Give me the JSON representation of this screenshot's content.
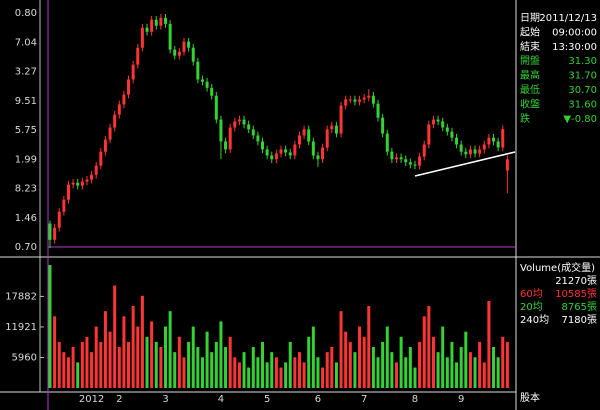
{
  "chart_data": {
    "type": "candlestick",
    "categories": [
      null,
      null,
      null,
      null,
      null,
      null,
      null,
      null,
      null,
      "2012",
      null,
      null,
      null,
      null,
      null,
      "2",
      null,
      null,
      null,
      null,
      null,
      null,
      null,
      null,
      null,
      "3",
      null,
      null,
      null,
      null,
      null,
      null,
      null,
      null,
      null,
      null,
      null,
      "4",
      null,
      null,
      null,
      null,
      null,
      null,
      null,
      null,
      null,
      "5",
      null,
      null,
      null,
      null,
      null,
      null,
      null,
      null,
      null,
      null,
      "6",
      null,
      null,
      null,
      null,
      null,
      null,
      null,
      null,
      null,
      "7",
      null,
      null,
      null,
      null,
      null,
      null,
      null,
      null,
      null,
      null,
      "8",
      null,
      null,
      null,
      null,
      null,
      null,
      null,
      null,
      null,
      "9",
      null,
      null,
      null,
      null,
      null,
      null,
      null,
      null,
      null,
      null
    ],
    "open": [
      29.9,
      29.47,
      29.79,
      30.21,
      30.53,
      30.93,
      30.98,
      30.9,
      31.01,
      31.06,
      31.19,
      31.43,
      31.8,
      32.12,
      32.44,
      32.78,
      33.05,
      33.31,
      33.71,
      34.1,
      34.55,
      35.08,
      34.97,
      35.29,
      35.13,
      35.34,
      35.18,
      34.5,
      34.34,
      34.44,
      34.71,
      34.55,
      34.18,
      33.71,
      33.65,
      33.49,
      33.28,
      32.65,
      32.07,
      31.86,
      32.44,
      32.6,
      32.65,
      32.52,
      32.39,
      32.23,
      32.07,
      31.86,
      31.7,
      31.6,
      31.75,
      31.86,
      31.78,
      31.7,
      31.99,
      32.23,
      32.39,
      32.07,
      31.7,
      31.6,
      31.91,
      32.39,
      32.49,
      32.28,
      33.02,
      33.18,
      33.18,
      33.12,
      33.18,
      33.23,
      33.28,
      33.07,
      32.7,
      32.28,
      31.8,
      31.6,
      31.65,
      31.6,
      31.52,
      31.46,
      31.43,
      31.67,
      31.99,
      32.52,
      32.65,
      32.6,
      32.44,
      32.33,
      32.17,
      31.99,
      31.8,
      31.73,
      31.86,
      31.75,
      31.86,
      31.99,
      32.17,
      32.07,
      31.91,
      31.3
    ],
    "high": [
      29.98,
      29.89,
      30.31,
      30.63,
      31.03,
      31.08,
      31.08,
      31.11,
      31.16,
      31.29,
      31.53,
      31.9,
      32.22,
      32.54,
      32.88,
      33.15,
      33.41,
      33.81,
      34.2,
      34.65,
      35.18,
      35.18,
      35.39,
      35.39,
      35.44,
      35.44,
      35.28,
      34.6,
      34.54,
      34.81,
      34.81,
      34.65,
      34.28,
      33.81,
      33.75,
      33.59,
      33.38,
      32.75,
      32.17,
      32.54,
      32.7,
      32.75,
      32.75,
      32.62,
      32.49,
      32.33,
      32.17,
      31.96,
      31.8,
      31.85,
      31.96,
      31.96,
      31.88,
      32.09,
      32.33,
      32.49,
      32.49,
      32.17,
      31.8,
      32.01,
      32.49,
      32.59,
      32.59,
      33.12,
      33.28,
      33.28,
      33.28,
      33.28,
      33.33,
      33.45,
      33.38,
      33.17,
      32.8,
      32.38,
      31.9,
      31.75,
      31.75,
      31.7,
      31.62,
      31.56,
      31.77,
      32.09,
      32.62,
      32.75,
      32.75,
      32.7,
      32.54,
      32.43,
      32.27,
      32.09,
      31.9,
      31.96,
      31.96,
      31.96,
      32.09,
      32.27,
      32.27,
      32.17,
      32.5,
      31.7
    ],
    "low": [
      29.25,
      29.37,
      29.69,
      30.11,
      30.43,
      30.83,
      30.8,
      30.8,
      30.91,
      30.96,
      31.09,
      31.33,
      31.7,
      32.02,
      32.34,
      32.68,
      32.95,
      33.21,
      33.61,
      34.0,
      34.45,
      34.87,
      34.87,
      35.03,
      35.03,
      35.08,
      34.4,
      34.24,
      34.24,
      34.34,
      34.45,
      34.08,
      33.61,
      33.55,
      33.39,
      33.18,
      32.55,
      31.6,
      31.76,
      31.76,
      32.34,
      32.5,
      32.42,
      32.29,
      32.13,
      31.97,
      31.76,
      31.6,
      31.5,
      31.5,
      31.65,
      31.68,
      31.6,
      31.6,
      31.89,
      32.13,
      31.97,
      31.6,
      31.4,
      31.5,
      31.81,
      32.29,
      32.18,
      32.18,
      32.92,
      33.08,
      33.02,
      33.02,
      33.08,
      33.13,
      32.97,
      32.6,
      32.18,
      31.7,
      31.5,
      31.5,
      31.5,
      31.42,
      31.36,
      31.33,
      31.33,
      31.57,
      31.89,
      32.42,
      32.5,
      32.34,
      32.23,
      32.07,
      31.89,
      31.7,
      31.63,
      31.63,
      31.65,
      31.65,
      31.76,
      31.89,
      31.97,
      31.81,
      31.81,
      30.7
    ],
    "close": [
      29.47,
      29.79,
      30.21,
      30.53,
      30.93,
      30.98,
      30.9,
      31.01,
      31.06,
      31.19,
      31.43,
      31.8,
      32.12,
      32.44,
      32.78,
      33.05,
      33.31,
      33.71,
      34.1,
      34.55,
      35.08,
      34.97,
      35.29,
      35.13,
      35.34,
      35.18,
      34.5,
      34.34,
      34.44,
      34.71,
      34.55,
      34.18,
      33.71,
      33.65,
      33.49,
      33.28,
      32.65,
      32.07,
      31.86,
      32.44,
      32.6,
      32.65,
      32.52,
      32.39,
      32.23,
      32.07,
      31.86,
      31.7,
      31.6,
      31.75,
      31.86,
      31.78,
      31.7,
      31.99,
      32.23,
      32.39,
      32.07,
      31.7,
      31.6,
      31.91,
      32.39,
      32.49,
      32.28,
      33.02,
      33.18,
      33.18,
      33.12,
      33.18,
      33.23,
      33.28,
      33.07,
      32.7,
      32.28,
      31.8,
      31.6,
      31.65,
      31.6,
      31.52,
      31.46,
      31.43,
      31.67,
      31.99,
      32.52,
      32.65,
      32.6,
      32.44,
      32.33,
      32.17,
      31.99,
      31.8,
      31.73,
      31.86,
      31.75,
      31.86,
      31.99,
      32.17,
      32.07,
      31.91,
      32.4,
      31.6
    ],
    "volume": [
      24000,
      14000,
      9000,
      7000,
      6000,
      8000,
      5000,
      9000,
      10000,
      7000,
      12000,
      9000,
      15000,
      11000,
      20000,
      8000,
      14000,
      9000,
      16000,
      12000,
      18000,
      10000,
      13000,
      9000,
      8000,
      12000,
      15000,
      7000,
      10000,
      6000,
      9000,
      12000,
      8000,
      6000,
      11000,
      7000,
      9000,
      13000,
      8000,
      10000,
      6000,
      5000,
      7000,
      4000,
      8000,
      6000,
      9000,
      5000,
      7000,
      6000,
      4000,
      5000,
      9000,
      6000,
      7000,
      5000,
      10000,
      12000,
      6000,
      4000,
      7000,
      8000,
      5000,
      15000,
      11000,
      9000,
      7000,
      12000,
      10000,
      16000,
      8000,
      6000,
      9000,
      12000,
      7000,
      5000,
      10000,
      6000,
      8000,
      4000,
      9000,
      14000,
      16000,
      10000,
      7000,
      12000,
      6000,
      9000,
      5000,
      8000,
      11000,
      7000,
      6000,
      9000,
      5000,
      17000,
      8000,
      6000,
      10000,
      9000
    ],
    "ylim": [
      29.2,
      35.6
    ],
    "y_labels": [
      "0.80",
      "7.04",
      "3.27",
      "9.51",
      "5.75",
      "1.99",
      "8.23",
      "1.46",
      "0.70"
    ],
    "volume_ylim": [
      0,
      24600
    ],
    "volume_ticks": [
      5960,
      11921,
      17882
    ],
    "up_color": "#ff3434",
    "down_color": "#34d234"
  },
  "info": [
    {
      "label": "日期",
      "value": "2011/12/13",
      "color": "#ffffff"
    },
    {
      "label": "起始",
      "value": "09:00:00",
      "color": "#ffffff"
    },
    {
      "label": "結束",
      "value": "13:30:00",
      "color": "#ffffff"
    },
    {
      "label": "開盤",
      "value": "31.30",
      "color": "#34d234"
    },
    {
      "label": "最高",
      "value": "31.70",
      "color": "#34d234"
    },
    {
      "label": "最低",
      "value": "30.70",
      "color": "#34d234"
    },
    {
      "label": "收盤",
      "value": "31.60",
      "color": "#34d234"
    },
    {
      "label": "跌",
      "value": "▼-0.80",
      "color": "#34d234"
    }
  ],
  "volume_info": {
    "title": "Volume(成交量)",
    "value": "21270張",
    "averages": [
      {
        "label": "60均",
        "value": "10585張",
        "color": "#ff3434"
      },
      {
        "label": "20均",
        "value": "8765張",
        "color": "#34d234"
      },
      {
        "label": "240均",
        "value": "7180張",
        "color": "#ffffff"
      }
    ]
  },
  "footer": "股本"
}
